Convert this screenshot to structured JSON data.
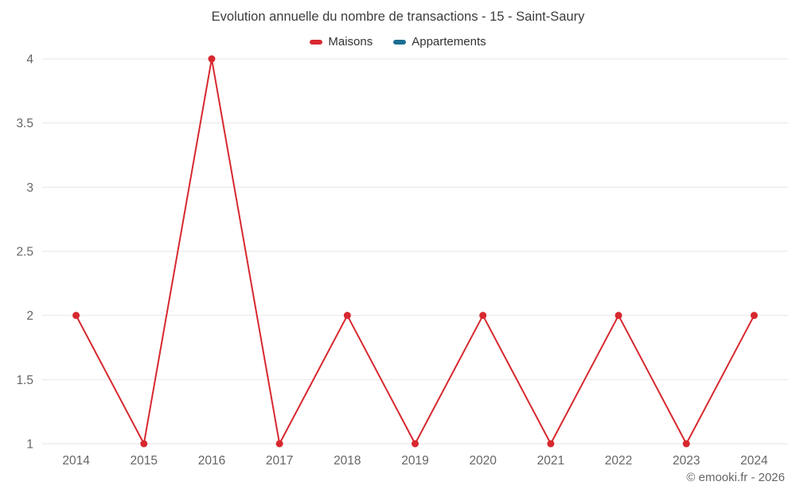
{
  "title": "Evolution annuelle du nombre de transactions - 15 - Saint-Saury",
  "footer": {
    "copyright": "© emooki.fr - 2026"
  },
  "colors": {
    "maisons": "#d7282f",
    "appartements": "#1d6e93",
    "gridline": "#e6e6e6",
    "axis_label": "#666666"
  },
  "chart_data": {
    "type": "line",
    "title": "Evolution annuelle du nombre de transactions - 15 - Saint-Saury",
    "categories": [
      "2014",
      "2015",
      "2016",
      "2017",
      "2018",
      "2019",
      "2020",
      "2021",
      "2022",
      "2023",
      "2024"
    ],
    "series": [
      {
        "name": "Maisons",
        "color": "#d7282f",
        "values": [
          2,
          1,
          4,
          1,
          2,
          1,
          2,
          1,
          2,
          1,
          2
        ]
      },
      {
        "name": "Appartements",
        "color": "#1d6e93",
        "values": []
      }
    ],
    "xlabel": "",
    "ylabel": "",
    "ylim": [
      1,
      4
    ],
    "yticks": [
      1,
      1.5,
      2,
      2.5,
      3,
      3.5,
      4
    ],
    "grid": true,
    "legend_position": "top"
  }
}
